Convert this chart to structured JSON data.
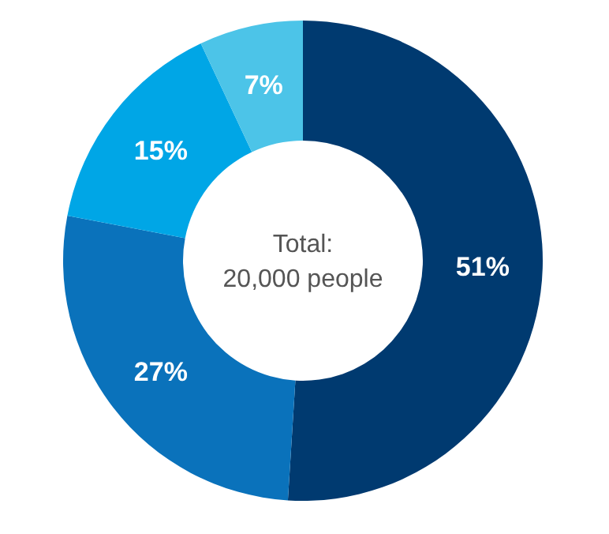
{
  "chart_data": {
    "type": "donut",
    "categories": [
      null,
      null,
      null,
      null
    ],
    "values": [
      51,
      27,
      15,
      7
    ],
    "colors": [
      "#003a70",
      "#0a72bb",
      "#00a6e6",
      "#4cc4e8"
    ],
    "value_labels": [
      "51%",
      "27%",
      "15%",
      "7%"
    ],
    "annotations": [
      "Total:",
      "20,000 people"
    ]
  }
}
